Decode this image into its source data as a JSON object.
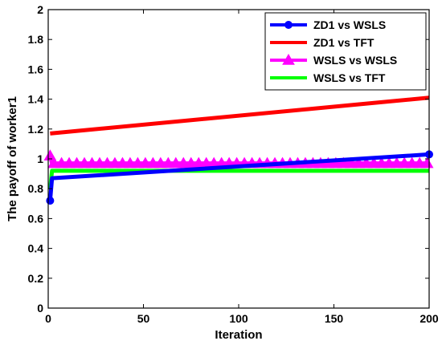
{
  "chart_data": {
    "type": "line",
    "xlabel": "Iteration",
    "ylabel": "The payoff of worker1",
    "xlim": [
      0,
      200
    ],
    "ylim": [
      0,
      2
    ],
    "xticks": [
      0,
      50,
      100,
      150,
      200
    ],
    "yticks": [
      0,
      0.2,
      0.4,
      0.6,
      0.8,
      1,
      1.2,
      1.4,
      1.6,
      1.8,
      2
    ],
    "ytick_labels": [
      "0",
      "0.2",
      "0.4",
      "0.6",
      "0.8",
      "1",
      "1.2",
      "1.4",
      "1.6",
      "1.8",
      "2"
    ],
    "grid": false,
    "legend_position": "top-right",
    "series": [
      {
        "name": "ZD1 vs WSLS",
        "color": "#0000ff",
        "marker": "circle",
        "x": [
          1,
          2,
          200
        ],
        "y": [
          0.72,
          0.87,
          1.03
        ]
      },
      {
        "name": "ZD1 vs TFT",
        "color": "#ff0000",
        "marker": "none",
        "x": [
          1,
          200
        ],
        "y": [
          1.17,
          1.41
        ]
      },
      {
        "name": "WSLS vs WSLS",
        "color": "#ff00ff",
        "marker": "triangle",
        "x": [
          1,
          2,
          3,
          200
        ],
        "y": [
          1.02,
          0.97,
          0.97,
          0.97
        ]
      },
      {
        "name": "WSLS vs TFT",
        "color": "#00ff00",
        "marker": "none",
        "x": [
          1,
          2,
          200
        ],
        "y": [
          0.8,
          0.92,
          0.92
        ]
      }
    ]
  }
}
